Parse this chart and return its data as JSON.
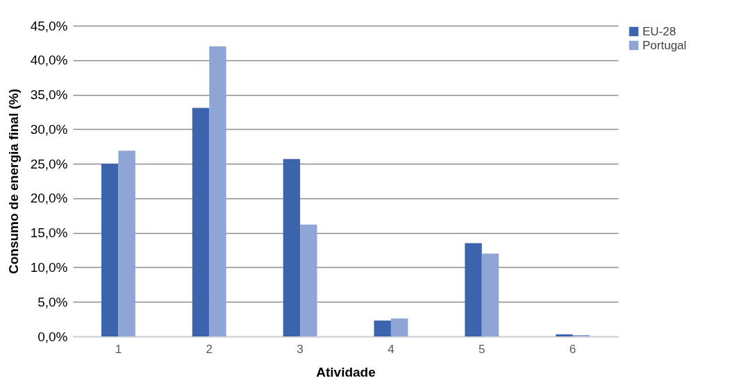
{
  "chart_data": {
    "type": "bar",
    "xlabel": "Atividade",
    "ylabel": "Consumo de energia final (%)",
    "categories": [
      "1",
      "2",
      "3",
      "4",
      "5",
      "6"
    ],
    "series": [
      {
        "name": "EU-28",
        "color": "#3c64ad",
        "values": [
          25.0,
          33.1,
          25.7,
          2.3,
          13.5,
          0.3
        ]
      },
      {
        "name": "Portugal",
        "color": "#8fa5d6",
        "values": [
          26.9,
          42.0,
          16.2,
          2.6,
          12.0,
          0.2
        ]
      }
    ],
    "ylim": [
      0,
      45
    ],
    "yticks": [
      {
        "value": 0,
        "label": "0,0%"
      },
      {
        "value": 5,
        "label": "5,0%"
      },
      {
        "value": 10,
        "label": "10,0%"
      },
      {
        "value": 15,
        "label": "15,0%"
      },
      {
        "value": 20,
        "label": "20,0%"
      },
      {
        "value": 25,
        "label": "25,0%"
      },
      {
        "value": 30,
        "label": "30,0%"
      },
      {
        "value": 35,
        "label": "35,0%"
      },
      {
        "value": 40,
        "label": "40,0%"
      },
      {
        "value": 45,
        "label": "45,0%"
      }
    ],
    "grid": "y",
    "legend": "right"
  }
}
